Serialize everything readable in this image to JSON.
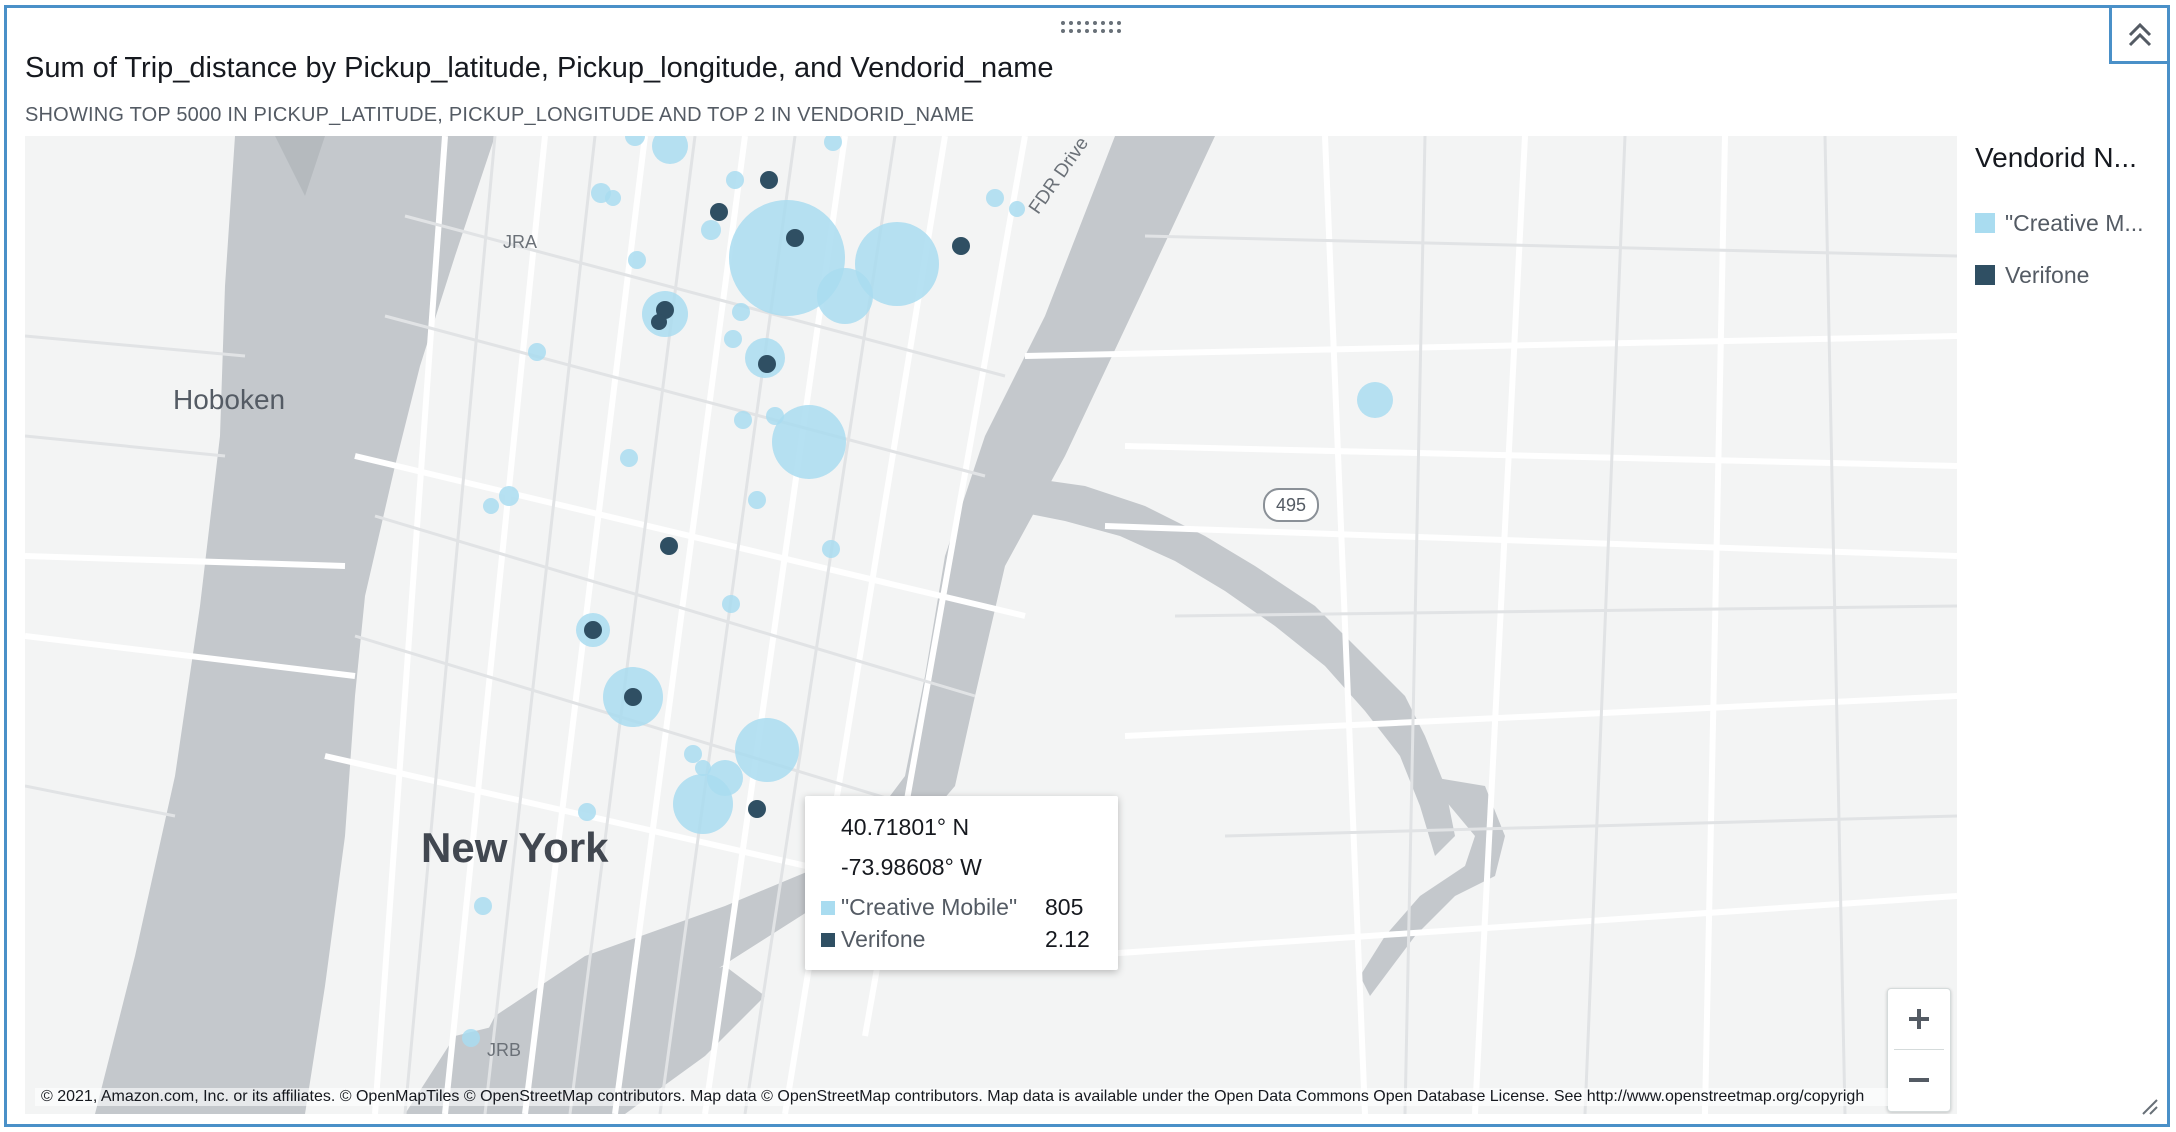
{
  "visual": {
    "title": "Sum of Trip_distance by Pickup_latitude, Pickup_longitude, and Vendorid_name",
    "subtitle": "SHOWING TOP 5000 IN PICKUP_LATITUDE, PICKUP_LONGITUDE AND TOP 2 IN VENDORID_NAME"
  },
  "legend": {
    "title": "Vendorid N...",
    "items": [
      {
        "label": "\"Creative M...",
        "color": "#a9dcf0"
      },
      {
        "label": "Verifone",
        "color": "#2f4f63"
      }
    ]
  },
  "map": {
    "labels": {
      "hoboken": "Hoboken",
      "new_york": "New York",
      "fdr_drive": "FDR Drive",
      "jra": "JRA",
      "jrb": "JRB",
      "route_495": "495"
    },
    "tooltip": {
      "lat": "40.71801° N",
      "lon": "-73.98608° W",
      "rows": [
        {
          "name": "\"Creative Mobile\"",
          "value": "805",
          "color": "#a9dcf0"
        },
        {
          "name": "Verifone",
          "value": "2.12",
          "color": "#2f4f63"
        }
      ]
    },
    "zoom": {
      "in": "+",
      "out": "−"
    },
    "attribution": "© 2021, Amazon.com, Inc. or its affiliates. © OpenMapTiles © OpenStreetMap contributors. Map data © OpenStreetMap contributors. Map data is available under the Open Data Commons Open Database License. See http://www.openstreetmap.org/copyrigh"
  }
}
